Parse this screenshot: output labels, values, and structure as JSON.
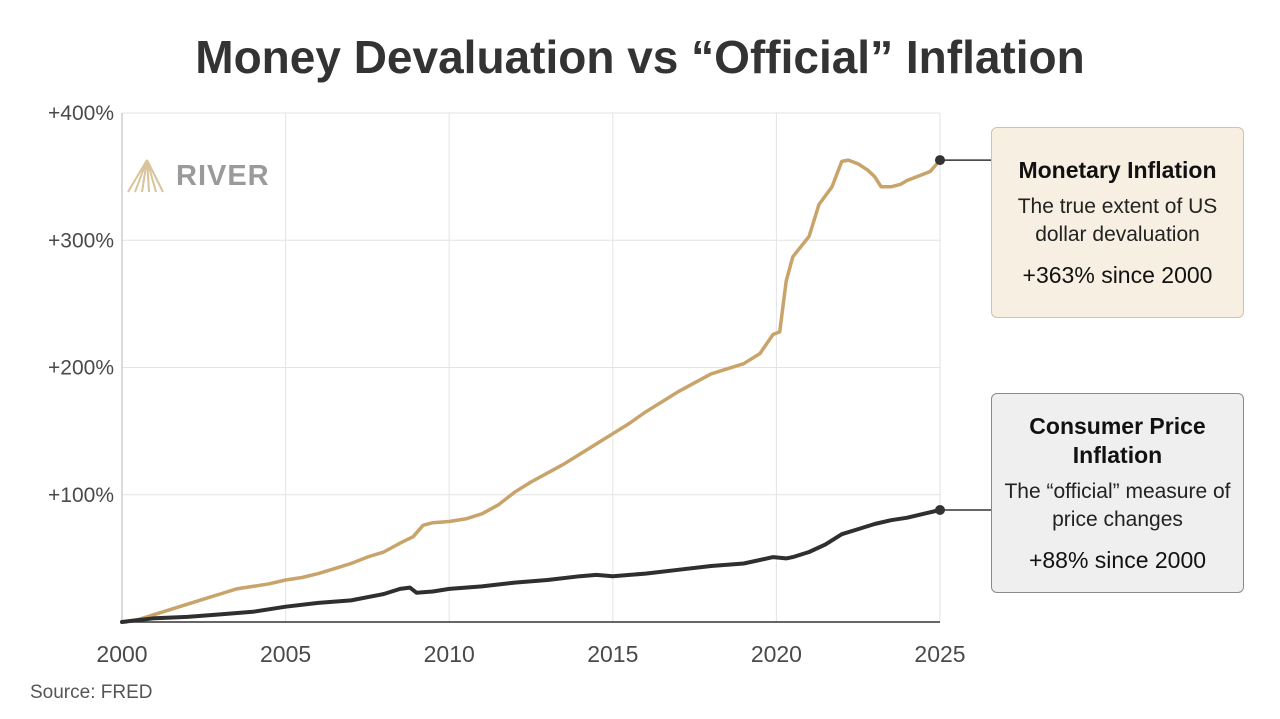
{
  "title": "Money Devaluation vs “Official” Inflation",
  "source": "Source: FRED",
  "logo": {
    "text": "RIVER",
    "icon": "river-mountain-icon"
  },
  "colors": {
    "monetary": "#c8a46a",
    "cpi": "#2f2f2f",
    "grid": "#e3e3e3"
  },
  "callouts": {
    "monetary": {
      "title": "Monetary Inflation",
      "description": "The true extent of US dollar devaluation",
      "stat": "+363% since 2000"
    },
    "cpi": {
      "title": "Consumer Price Inflation",
      "description": "The “official” measure of price changes",
      "stat": "+88% since 2000"
    }
  },
  "chart_data": {
    "type": "line",
    "xlim": [
      2000,
      2025
    ],
    "ylim": [
      0,
      400
    ],
    "x_ticks": [
      "2000",
      "2005",
      "2010",
      "2015",
      "2020",
      "2025"
    ],
    "y_ticks": [
      "+100%",
      "+200%",
      "+300%",
      "+400%"
    ],
    "grid": true,
    "series": [
      {
        "key": "monetary",
        "points": [
          [
            2000,
            0
          ],
          [
            2000.5,
            2
          ],
          [
            2001,
            6
          ],
          [
            2001.5,
            10
          ],
          [
            2002,
            14
          ],
          [
            2002.5,
            18
          ],
          [
            2003,
            22
          ],
          [
            2003.5,
            26
          ],
          [
            2004,
            28
          ],
          [
            2004.5,
            30
          ],
          [
            2005,
            33
          ],
          [
            2005.5,
            35
          ],
          [
            2006,
            38
          ],
          [
            2006.5,
            42
          ],
          [
            2007,
            46
          ],
          [
            2007.5,
            51
          ],
          [
            2008,
            55
          ],
          [
            2008.5,
            62
          ],
          [
            2008.9,
            67
          ],
          [
            2009.2,
            76
          ],
          [
            2009.5,
            78
          ],
          [
            2010,
            79
          ],
          [
            2010.5,
            81
          ],
          [
            2011,
            85
          ],
          [
            2011.5,
            92
          ],
          [
            2012,
            102
          ],
          [
            2012.5,
            110
          ],
          [
            2013,
            117
          ],
          [
            2013.5,
            124
          ],
          [
            2014,
            132
          ],
          [
            2014.5,
            140
          ],
          [
            2015,
            148
          ],
          [
            2015.5,
            156
          ],
          [
            2016,
            165
          ],
          [
            2016.5,
            173
          ],
          [
            2017,
            181
          ],
          [
            2017.5,
            188
          ],
          [
            2018,
            195
          ],
          [
            2018.5,
            199
          ],
          [
            2019,
            203
          ],
          [
            2019.5,
            211
          ],
          [
            2019.9,
            226
          ],
          [
            2020.1,
            228
          ],
          [
            2020.3,
            268
          ],
          [
            2020.5,
            287
          ],
          [
            2021,
            303
          ],
          [
            2021.3,
            328
          ],
          [
            2021.7,
            342
          ],
          [
            2022,
            362
          ],
          [
            2022.2,
            363
          ],
          [
            2022.5,
            360
          ],
          [
            2022.8,
            355
          ],
          [
            2023,
            350
          ],
          [
            2023.2,
            342
          ],
          [
            2023.5,
            342
          ],
          [
            2023.8,
            344
          ],
          [
            2024,
            347
          ],
          [
            2024.3,
            350
          ],
          [
            2024.7,
            354
          ],
          [
            2025,
            363
          ]
        ]
      },
      {
        "key": "cpi",
        "points": [
          [
            2000,
            0
          ],
          [
            2001,
            3
          ],
          [
            2002,
            4
          ],
          [
            2003,
            6
          ],
          [
            2004,
            8
          ],
          [
            2005,
            12
          ],
          [
            2006,
            15
          ],
          [
            2007,
            17
          ],
          [
            2008,
            22
          ],
          [
            2008.5,
            26
          ],
          [
            2008.8,
            27
          ],
          [
            2009,
            23
          ],
          [
            2009.5,
            24
          ],
          [
            2010,
            26
          ],
          [
            2011,
            28
          ],
          [
            2012,
            31
          ],
          [
            2013,
            33
          ],
          [
            2014,
            36
          ],
          [
            2014.5,
            37
          ],
          [
            2015,
            36
          ],
          [
            2016,
            38
          ],
          [
            2017,
            41
          ],
          [
            2018,
            44
          ],
          [
            2019,
            46
          ],
          [
            2019.9,
            51
          ],
          [
            2020.3,
            50
          ],
          [
            2020.5,
            51
          ],
          [
            2021,
            55
          ],
          [
            2021.5,
            61
          ],
          [
            2022,
            69
          ],
          [
            2022.5,
            73
          ],
          [
            2023,
            77
          ],
          [
            2023.5,
            80
          ],
          [
            2024,
            82
          ],
          [
            2024.5,
            85
          ],
          [
            2025,
            88
          ]
        ]
      }
    ]
  }
}
